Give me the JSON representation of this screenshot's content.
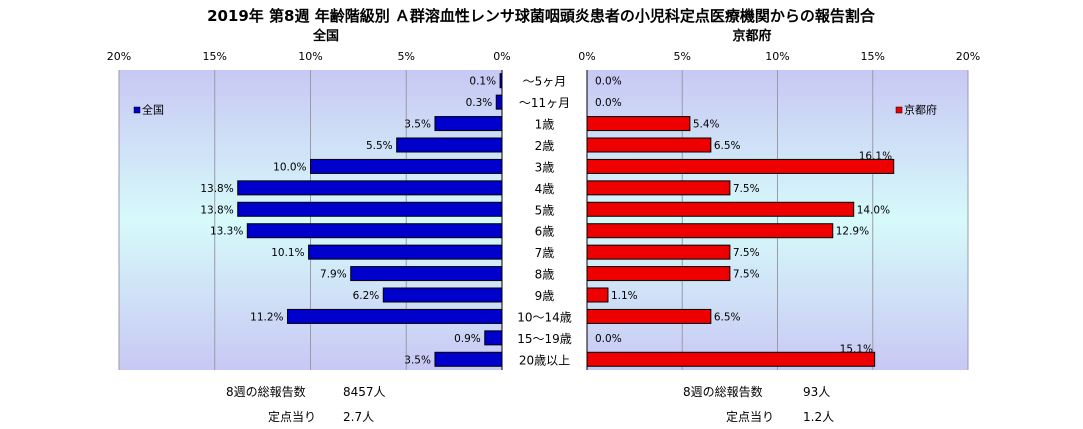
{
  "title": "2019年 第8週 年齢階級別 Ａ群溶血性レンサ球菌咽頭炎患者の小児科定点医療機関からの報告割合",
  "chart_data": {
    "type": "bar",
    "orientation": "horizontal-population-pyramid",
    "categories": [
      "～5ヶ月",
      "～11ヶ月",
      "1歳",
      "2歳",
      "3歳",
      "4歳",
      "5歳",
      "6歳",
      "7歳",
      "8歳",
      "9歳",
      "10～14歳",
      "15～19歳",
      "20歳以上"
    ],
    "xlim": [
      0,
      20
    ],
    "xticks": [
      "0%",
      "5%",
      "10%",
      "15%",
      "20%"
    ],
    "grid": true,
    "panels": [
      {
        "heading": "全国",
        "legend": "全国",
        "legend_position": "top-left",
        "color": "#0000cc",
        "direction": "left",
        "values": [
          0.1,
          0.3,
          3.5,
          5.5,
          10.0,
          13.8,
          13.8,
          13.3,
          10.1,
          7.9,
          6.2,
          11.2,
          0.9,
          3.5
        ],
        "labels": [
          "0.1%",
          "0.3%",
          "3.5%",
          "5.5%",
          "10.0%",
          "13.8%",
          "13.8%",
          "13.3%",
          "10.1%",
          "7.9%",
          "6.2%",
          "11.2%",
          "0.9%",
          "3.5%"
        ]
      },
      {
        "heading": "京都府",
        "legend": "京都府",
        "legend_position": "top-right",
        "color": "#ee0000",
        "direction": "right",
        "values": [
          0.0,
          0.0,
          5.4,
          6.5,
          16.1,
          7.5,
          14.0,
          12.9,
          7.5,
          7.5,
          1.1,
          6.5,
          0.0,
          15.1
        ],
        "labels": [
          "0.0%",
          "0.0%",
          "5.4%",
          "6.5%",
          "16.1%",
          "7.5%",
          "14.0%",
          "12.9%",
          "7.5%",
          "7.5%",
          "1.1%",
          "6.5%",
          "0.0%",
          "15.1%"
        ]
      }
    ]
  },
  "footer": {
    "left": {
      "total_label": "8週の総報告数",
      "total_value": "8457人",
      "per_label": "定点当り",
      "per_value": "2.7人"
    },
    "right": {
      "total_label": "8週の総報告数",
      "total_value": "93人",
      "per_label": "定点当り",
      "per_value": "1.2人"
    }
  }
}
